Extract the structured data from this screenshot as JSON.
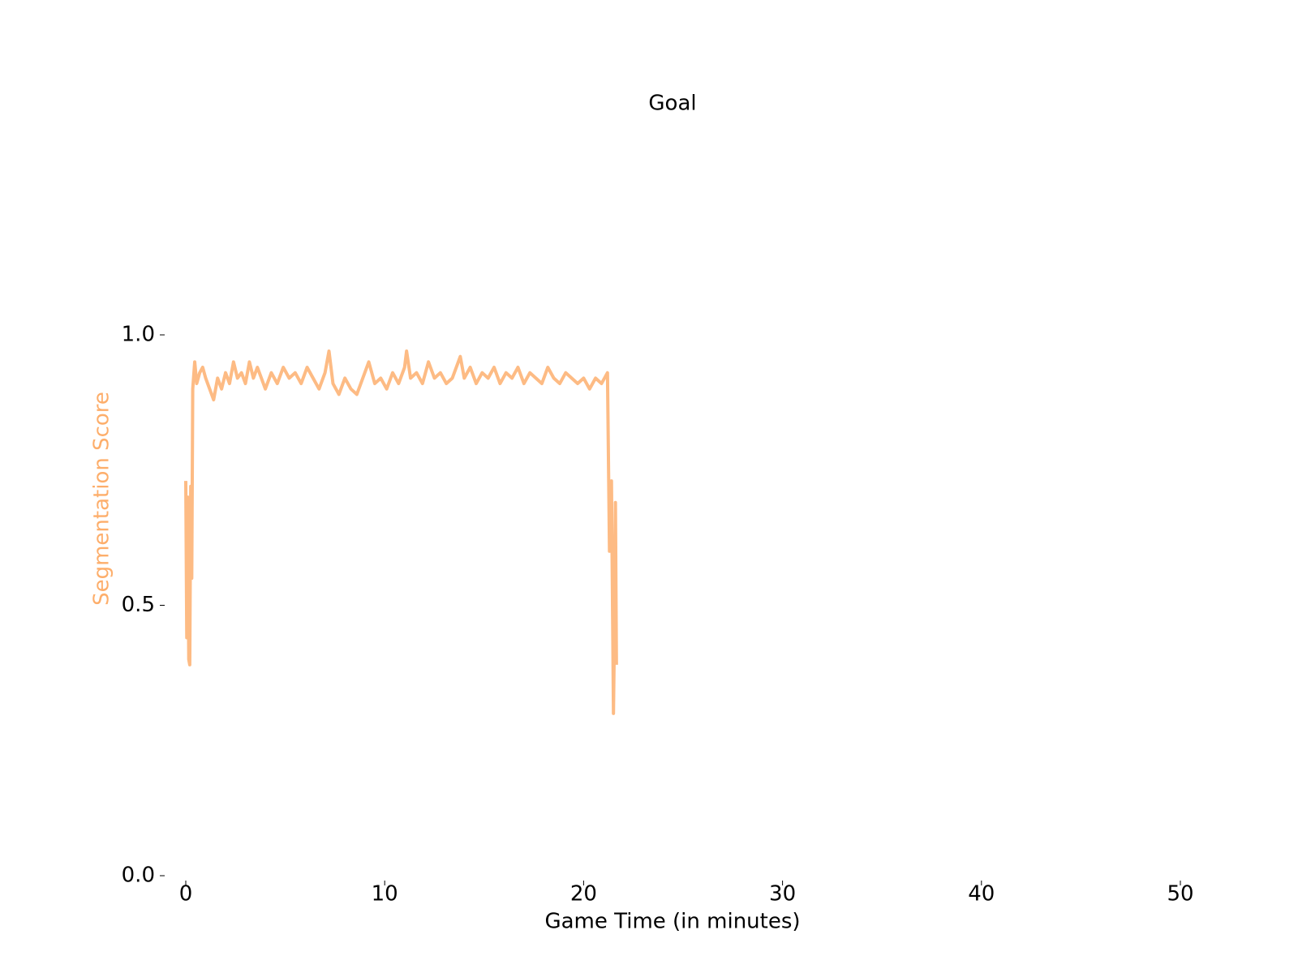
{
  "chart_data": {
    "type": "line",
    "title": "Goal",
    "xlabel": "Game Time (in minutes)",
    "ylabel": "Segmentation Score",
    "ylabel_color": "#fdae6b",
    "xlim": [
      -1,
      52
    ],
    "ylim": [
      0,
      1.4
    ],
    "xticks": [
      0,
      10,
      20,
      30,
      40,
      50
    ],
    "yticks": [
      {
        "value": 0,
        "label": "0.0"
      },
      {
        "value": 0.5,
        "label": "0.5"
      },
      {
        "value": 1,
        "label": "1.0"
      }
    ],
    "grid": false,
    "series": [
      {
        "color": "#fdbb84",
        "x": [
          0,
          0.05,
          0.1,
          0.15,
          0.2,
          0.25,
          0.3,
          0.35,
          0.45,
          0.55,
          0.7,
          0.85,
          1.0,
          1.2,
          1.4,
          1.6,
          1.8,
          2.0,
          2.2,
          2.4,
          2.6,
          2.8,
          3.0,
          3.2,
          3.4,
          3.6,
          3.8,
          4.0,
          4.3,
          4.6,
          4.9,
          5.2,
          5.5,
          5.8,
          6.1,
          6.4,
          6.7,
          7.0,
          7.2,
          7.4,
          7.7,
          8.0,
          8.3,
          8.6,
          8.9,
          9.2,
          9.5,
          9.8,
          10.1,
          10.4,
          10.7,
          11.0,
          11.1,
          11.3,
          11.6,
          11.9,
          12.2,
          12.5,
          12.8,
          13.1,
          13.4,
          13.8,
          14.0,
          14.3,
          14.6,
          14.9,
          15.2,
          15.5,
          15.8,
          16.1,
          16.4,
          16.7,
          17.0,
          17.3,
          17.6,
          17.9,
          18.2,
          18.5,
          18.8,
          19.1,
          19.4,
          19.7,
          20.0,
          20.3,
          20.6,
          20.9,
          21.2,
          21.3,
          21.4,
          21.5,
          21.55,
          21.6,
          21.65
        ],
        "values": [
          0.73,
          0.44,
          0.7,
          0.4,
          0.39,
          0.72,
          0.55,
          0.9,
          0.95,
          0.91,
          0.93,
          0.94,
          0.92,
          0.9,
          0.88,
          0.92,
          0.9,
          0.93,
          0.91,
          0.95,
          0.92,
          0.93,
          0.91,
          0.95,
          0.92,
          0.94,
          0.92,
          0.9,
          0.93,
          0.91,
          0.94,
          0.92,
          0.93,
          0.91,
          0.94,
          0.92,
          0.9,
          0.93,
          0.97,
          0.91,
          0.89,
          0.92,
          0.9,
          0.89,
          0.92,
          0.95,
          0.91,
          0.92,
          0.9,
          0.93,
          0.91,
          0.94,
          0.97,
          0.92,
          0.93,
          0.91,
          0.95,
          0.92,
          0.93,
          0.91,
          0.92,
          0.96,
          0.92,
          0.94,
          0.91,
          0.93,
          0.92,
          0.94,
          0.91,
          0.93,
          0.92,
          0.94,
          0.91,
          0.93,
          0.92,
          0.91,
          0.94,
          0.92,
          0.91,
          0.93,
          0.92,
          0.91,
          0.92,
          0.9,
          0.92,
          0.91,
          0.93,
          0.6,
          0.73,
          0.3,
          0.45,
          0.69,
          0.39
        ]
      }
    ]
  }
}
